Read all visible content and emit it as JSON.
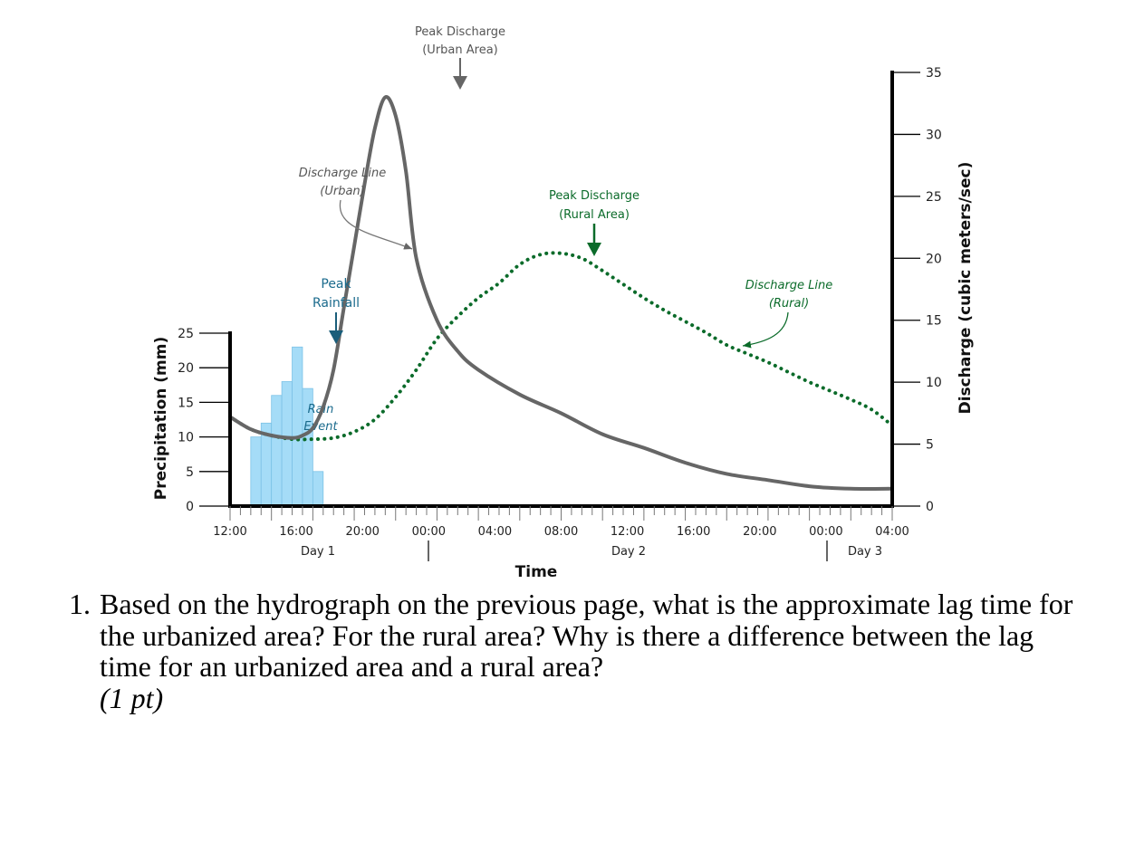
{
  "chart_data": {
    "type": "line",
    "xlabel": "Time",
    "ylabel_left": "Precipitation (mm)",
    "ylabel_right": "Discharge (cubic meters/sec)",
    "x_tick_labels": [
      "12:00",
      "16:00",
      "20:00",
      "00:00",
      "04:00",
      "08:00",
      "12:00",
      "16:00",
      "20:00",
      "00:00",
      "04:00"
    ],
    "day_labels": [
      "Day 1",
      "Day 2",
      "Day 3"
    ],
    "y_left_ticks": [
      "0",
      "5",
      "10",
      "15",
      "20",
      "25"
    ],
    "y_left_range": [
      0,
      25
    ],
    "y_right_ticks": [
      "0",
      "5",
      "10",
      "15",
      "20",
      "25",
      "30",
      "35"
    ],
    "y_right_range": [
      0,
      35
    ],
    "hours_range": [
      0,
      64
    ],
    "precipitation_bars": {
      "name": "Rain Event",
      "color": "#a5dcf7",
      "bin_hours": 1,
      "hours_start": [
        2,
        3,
        4,
        5,
        6,
        7,
        8
      ],
      "values": [
        10,
        12,
        16,
        18,
        23,
        17,
        5
      ]
    },
    "series": [
      {
        "name": "Discharge Line (Urban)",
        "color": "#666666",
        "style": "solid",
        "hours": [
          0,
          2,
          4,
          6,
          7,
          8,
          9,
          10,
          11,
          12,
          13,
          14,
          15,
          16,
          17,
          18,
          20,
          22,
          24,
          28,
          32,
          36,
          40,
          44,
          48,
          52,
          56,
          60,
          64
        ],
        "values": [
          7.2,
          6.2,
          5.7,
          5.5,
          5.7,
          6.3,
          8,
          11,
          16,
          21,
          26,
          30.5,
          33,
          31.5,
          27,
          20,
          15,
          12.5,
          11,
          9,
          7.5,
          5.8,
          4.7,
          3.5,
          2.6,
          2.1,
          1.6,
          1.4,
          1.4
        ],
        "peak_label": "Peak Discharge (Urban Area)"
      },
      {
        "name": "Discharge Line (Rural)",
        "color": "#0b6b2a",
        "style": "dotted",
        "hours": [
          0,
          2,
          4,
          6,
          8,
          10,
          12,
          14,
          16,
          18,
          20,
          22,
          24,
          26,
          28,
          30,
          32,
          34,
          36,
          38,
          40,
          42,
          44,
          46,
          48,
          50,
          52,
          54,
          56,
          58,
          60,
          62,
          64
        ],
        "values": [
          7.2,
          6.2,
          5.7,
          5.4,
          5.4,
          5.5,
          6,
          7,
          8.8,
          11,
          13.5,
          15.3,
          16.8,
          18,
          19.5,
          20.3,
          20.4,
          20,
          19,
          17.9,
          16.8,
          15.8,
          14.9,
          14,
          13,
          12.3,
          11.6,
          10.8,
          10,
          9.3,
          8.6,
          7.8,
          6.5
        ],
        "peak_label": "Peak Discharge (Rural Area)"
      }
    ],
    "annotations": {
      "peak_urban": [
        "Peak Discharge",
        "(Urban Area)"
      ],
      "peak_rural": [
        "Peak Discharge",
        "(Rural Area)"
      ],
      "peak_rainfall": [
        "Peak",
        "Rainfall"
      ],
      "rain_event": [
        "Rain",
        "Event"
      ],
      "discharge_urban": [
        "Discharge Line",
        "(Urban)"
      ],
      "discharge_rural": [
        "Discharge Line",
        "(Rural)"
      ]
    },
    "grid": false,
    "colors": {
      "urban": "#666666",
      "rural": "#0b6b2a",
      "rain": "#a5dcf7",
      "rain_text": "#1a6a8c",
      "peak_rainfall_arrow": "#1a5d7a"
    }
  },
  "question": {
    "number": "1.",
    "text": "Based on the hydrograph on the previous page, what is the approximate lag time for the urbanized area? For the rural area? Why is there a difference between the lag time for an urbanized area and a rural area?",
    "points": "(1 pt)"
  }
}
